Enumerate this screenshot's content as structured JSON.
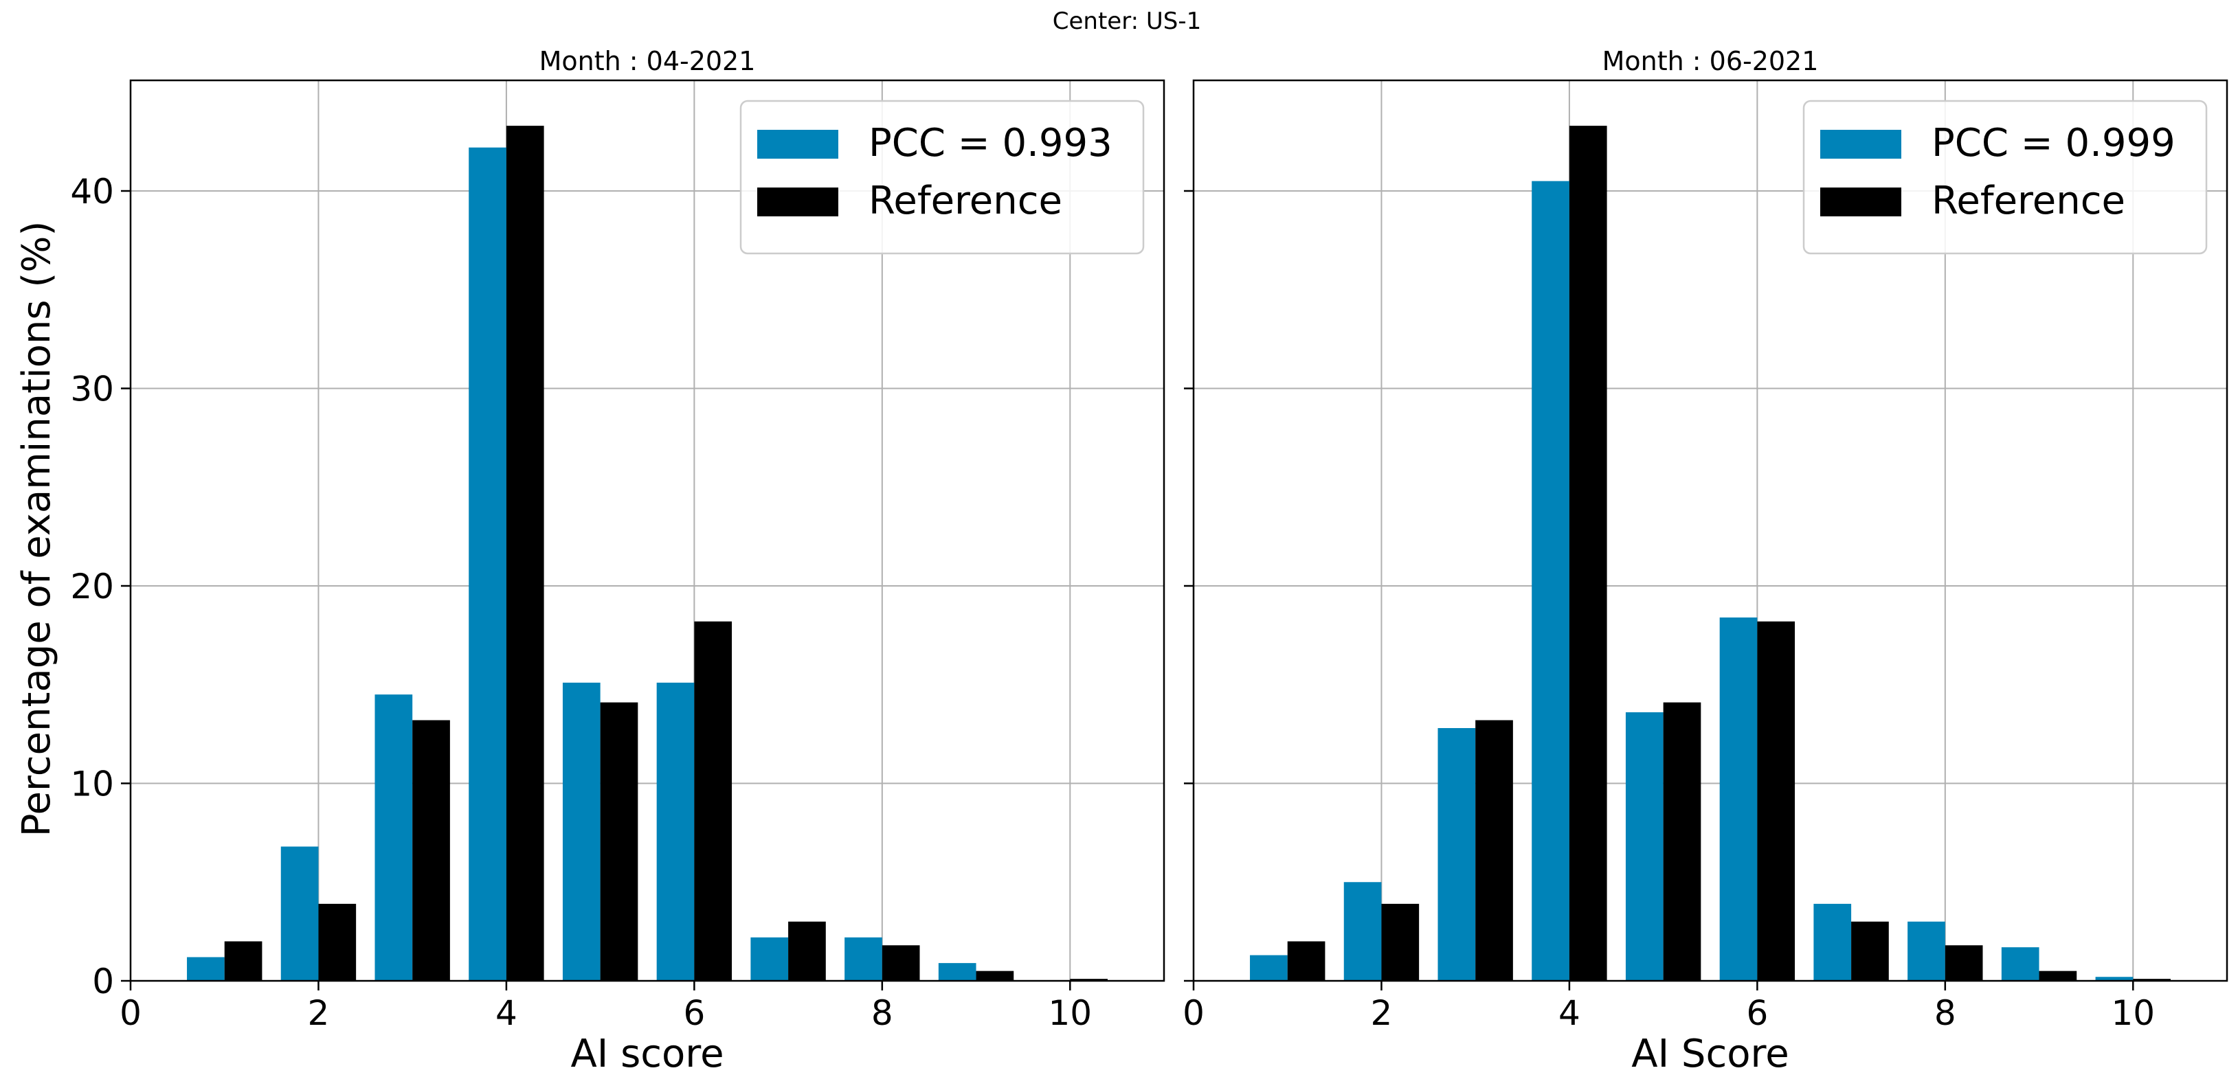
{
  "suptitle": "Center: US-1",
  "ylabel": "Percentage of examinations (%)",
  "colors": {
    "ai": "#0083b8",
    "reference": "#000000",
    "grid": "#b0b0b0"
  },
  "chart_data": [
    {
      "type": "bar",
      "title": "Month : 04-2021",
      "xlabel": "AI score",
      "ylabel": "Percentage of examinations (%)",
      "x": [
        1,
        2,
        3,
        4,
        5,
        6,
        7,
        8,
        9,
        10
      ],
      "xlim": [
        0,
        11
      ],
      "ylim": [
        0,
        45.6
      ],
      "xticks": [
        0,
        2,
        4,
        6,
        8,
        10
      ],
      "yticks": [
        0,
        10,
        20,
        30,
        40
      ],
      "grid": true,
      "legend_position": "top-right",
      "series": [
        {
          "name": "PCC = 0.993",
          "color": "#0083b8",
          "values": [
            1.2,
            6.8,
            14.5,
            42.2,
            15.1,
            15.1,
            2.2,
            2.2,
            0.9,
            0.0
          ]
        },
        {
          "name": "Reference",
          "color": "#000000",
          "values": [
            2.0,
            3.9,
            13.2,
            43.3,
            14.1,
            18.2,
            3.0,
            1.8,
            0.5,
            0.1
          ]
        }
      ]
    },
    {
      "type": "bar",
      "title": "Month : 06-2021",
      "xlabel": "AI Score",
      "ylabel": "",
      "x": [
        1,
        2,
        3,
        4,
        5,
        6,
        7,
        8,
        9,
        10
      ],
      "xlim": [
        0,
        11
      ],
      "ylim": [
        0,
        45.6
      ],
      "xticks": [
        0,
        2,
        4,
        6,
        8,
        10
      ],
      "yticks": [
        0,
        10,
        20,
        30,
        40
      ],
      "grid": true,
      "legend_position": "top-right",
      "series": [
        {
          "name": "PCC = 0.999",
          "color": "#0083b8",
          "values": [
            1.3,
            5.0,
            12.8,
            40.5,
            13.6,
            18.4,
            3.9,
            3.0,
            1.7,
            0.2
          ]
        },
        {
          "name": "Reference",
          "color": "#000000",
          "values": [
            2.0,
            3.9,
            13.2,
            43.3,
            14.1,
            18.2,
            3.0,
            1.8,
            0.5,
            0.1
          ]
        }
      ]
    }
  ]
}
